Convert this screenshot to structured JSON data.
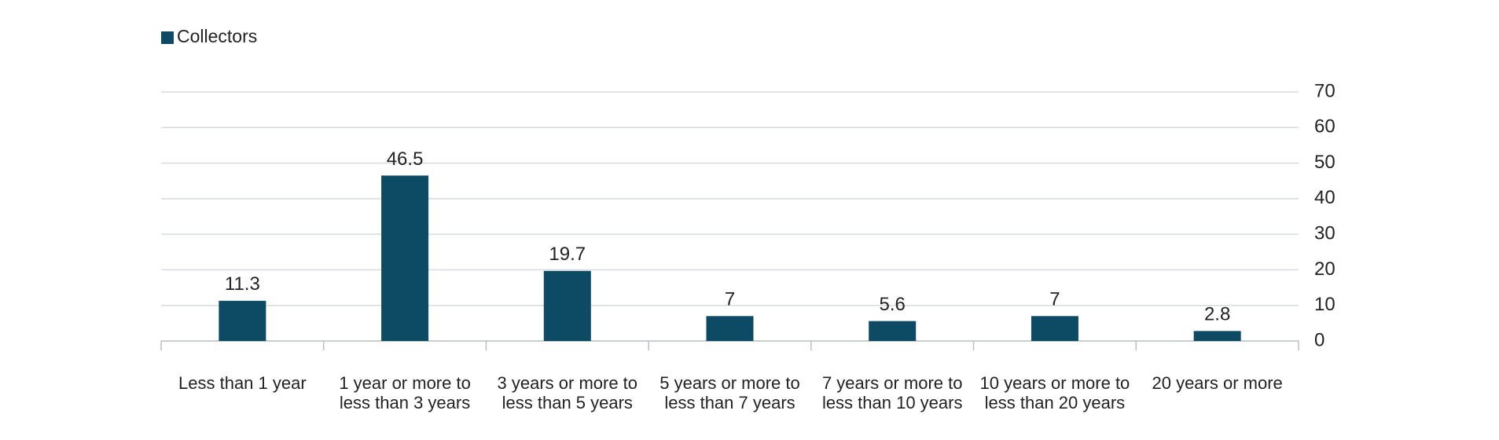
{
  "chart_data": {
    "type": "bar",
    "categories": [
      "Less than 1 year",
      "1 year or more to less than 3 years",
      "3 years or more to less than 5 years",
      "5 years or more to less than 7 years",
      "7 years or more to less than 10 years",
      "10 years or more to less than 20 years",
      "20 years or more"
    ],
    "series": [
      {
        "name": "Collectors",
        "color": "#0d4a63",
        "values": [
          11.3,
          46.5,
          19.7,
          7,
          5.6,
          7,
          2.8
        ]
      }
    ],
    "ylim": [
      0,
      70
    ],
    "yticks": [
      0,
      10,
      20,
      30,
      40,
      50,
      60,
      70
    ],
    "grid": true,
    "y_axis_side": "right",
    "legend": "top-left"
  }
}
